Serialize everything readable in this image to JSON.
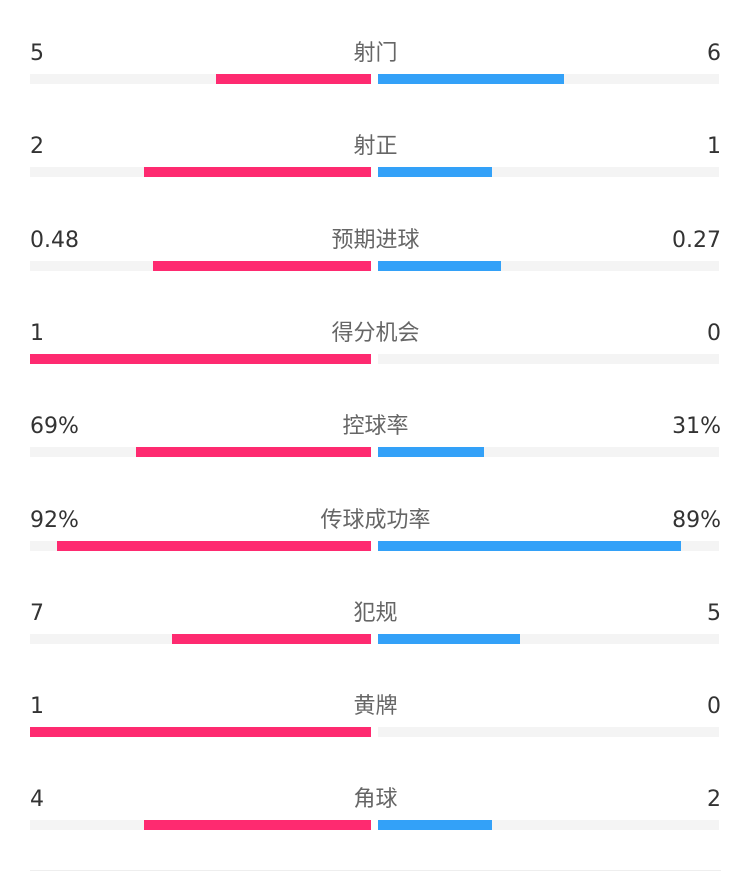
{
  "colors": {
    "home": "#FE2A70",
    "away": "#33A1F8",
    "track": "#F4F4F4"
  },
  "stats": [
    {
      "label": "射门",
      "home": "5",
      "away": "6",
      "home_share": 0.455,
      "away_share": 0.545
    },
    {
      "label": "射正",
      "home": "2",
      "away": "1",
      "home_share": 0.667,
      "away_share": 0.333
    },
    {
      "label": "预期进球",
      "home": "0.48",
      "away": "0.27",
      "home_share": 0.64,
      "away_share": 0.36
    },
    {
      "label": "得分机会",
      "home": "1",
      "away": "0",
      "home_share": 1.0,
      "away_share": 0.0
    },
    {
      "label": "控球率",
      "home": "69%",
      "away": "31%",
      "home_share": 0.69,
      "away_share": 0.31
    },
    {
      "label": "传球成功率",
      "home": "92%",
      "away": "89%",
      "home_share": 0.92,
      "away_share": 0.89
    },
    {
      "label": "犯规",
      "home": "7",
      "away": "5",
      "home_share": 0.583,
      "away_share": 0.417
    },
    {
      "label": "黄牌",
      "home": "1",
      "away": "0",
      "home_share": 1.0,
      "away_share": 0.0
    },
    {
      "label": "角球",
      "home": "4",
      "away": "2",
      "home_share": 0.667,
      "away_share": 0.333
    }
  ]
}
